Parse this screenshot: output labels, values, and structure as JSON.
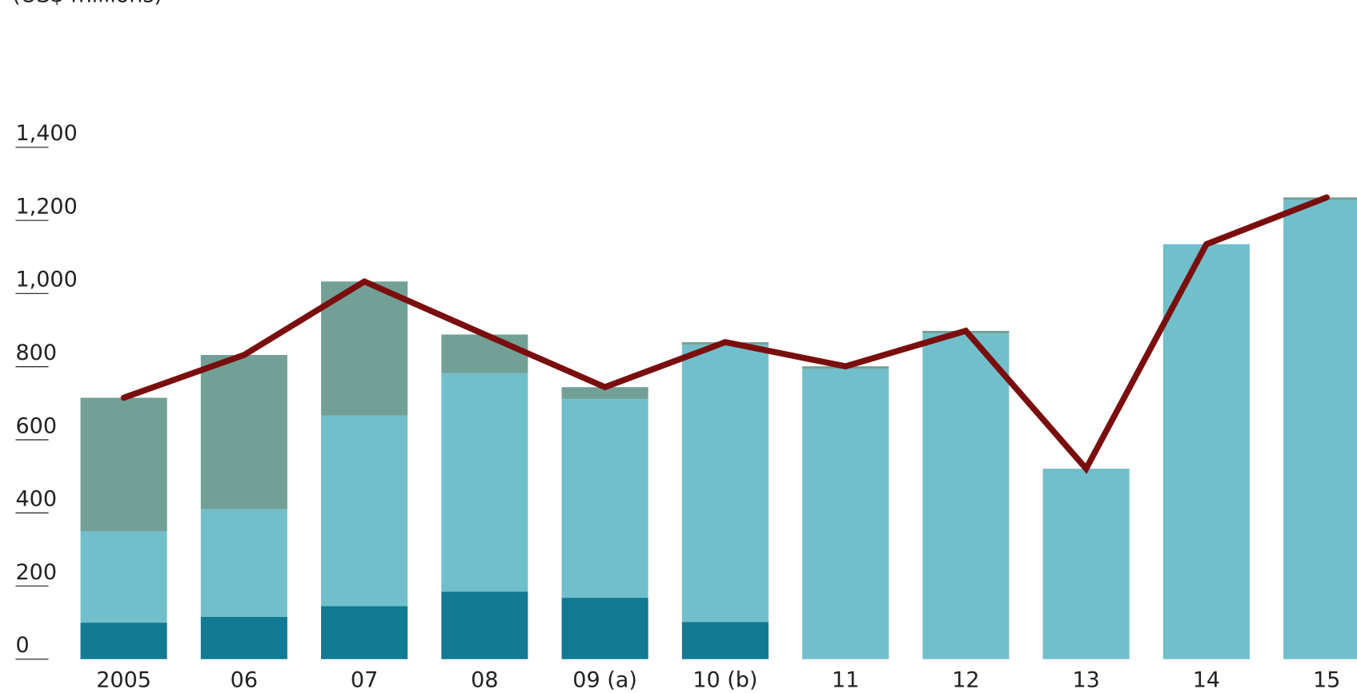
{
  "chart_data": {
    "type": "stacked_bar_line",
    "subtitle": "(US$ millions)",
    "categories": [
      "2005",
      "06",
      "07",
      "08",
      "09 (a)",
      "10 (b)",
      "11",
      "12",
      "13",
      "14",
      "15"
    ],
    "series": [
      {
        "color": "#127a93",
        "values": [
          100,
          116,
          145,
          185,
          168,
          102,
          0,
          0,
          0,
          0,
          0
        ]
      },
      {
        "color": "#72bfcc",
        "values": [
          250,
          294,
          521,
          597,
          543,
          758,
          794,
          891,
          521,
          1135,
          1256
        ]
      },
      {
        "color": "#73a096",
        "values": [
          365,
          422,
          367,
          106,
          33,
          7,
          7,
          7,
          0,
          0,
          7
        ]
      },
      {
        "color": "#7a0e0e",
        "type": "line",
        "values": [
          715,
          832,
          1033,
          888,
          744,
          867,
          801,
          898,
          521,
          1135,
          1263
        ]
      }
    ],
    "ylim": [
      0,
      1400
    ],
    "yticks": [
      0,
      200,
      400,
      600,
      800,
      {
        "value": 1000,
        "label": "1,000"
      },
      {
        "value": 1200,
        "label": "1,200"
      },
      {
        "value": 1400,
        "label": "1,400"
      }
    ]
  }
}
